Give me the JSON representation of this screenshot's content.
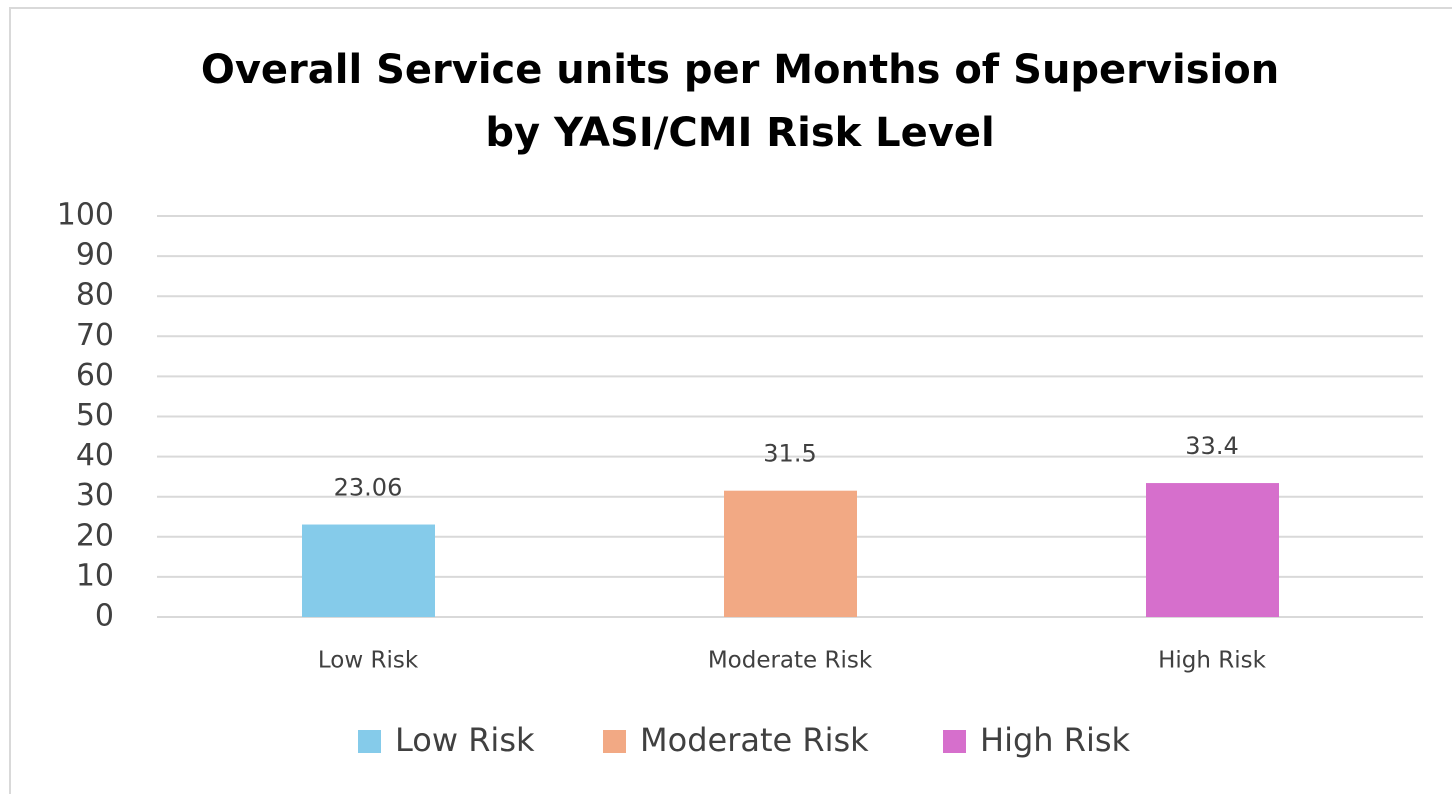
{
  "chart_data": {
    "type": "bar",
    "title": [
      "Overall Service units per Months of Supervision",
      "by YASI/CMI Risk Level"
    ],
    "categories": [
      "Low Risk",
      "Moderate Risk",
      "High Risk"
    ],
    "series": [
      {
        "name": "Low Risk",
        "color": "#85cbea",
        "values": [
          23.06,
          null,
          null
        ]
      },
      {
        "name": "Moderate Risk",
        "color": "#f2a984",
        "values": [
          null,
          31.5,
          null
        ]
      },
      {
        "name": "High Risk",
        "color": "#d66fcc",
        "values": [
          null,
          null,
          33.4
        ]
      }
    ],
    "ylim": [
      0,
      100
    ],
    "yticks": [
      0,
      10,
      20,
      30,
      40,
      50,
      60,
      70,
      80,
      90,
      100
    ],
    "grid": true,
    "legend": "bottom"
  }
}
